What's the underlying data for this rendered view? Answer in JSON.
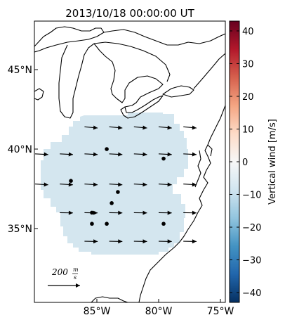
{
  "map": {
    "title": "2013/10/18 00:00:00 UT",
    "lon_ticks": [
      {
        "label": "85°W",
        "lon": -85
      },
      {
        "label": "80°W",
        "lon": -80
      },
      {
        "label": "75°W",
        "lon": -75
      }
    ],
    "lat_ticks": [
      {
        "label": "45°N",
        "lat": 45
      },
      {
        "label": "40°N",
        "lat": 40
      },
      {
        "label": "35°N",
        "lat": 35
      }
    ],
    "field_color": "#d4e6ef",
    "scale_label": "200",
    "scale_unit_num": "m",
    "scale_unit_den": "s"
  },
  "stations": [
    {
      "lat": 40.0,
      "lon": -84.2
    },
    {
      "lat": 39.4,
      "lon": -79.6
    },
    {
      "lat": 38.0,
      "lon": -87.1
    },
    {
      "lat": 37.3,
      "lon": -83.3
    },
    {
      "lat": 36.6,
      "lon": -83.8
    },
    {
      "lat": 36.0,
      "lon": -85.4
    },
    {
      "lat": 35.3,
      "lon": -85.4
    },
    {
      "lat": 35.3,
      "lon": -84.2
    },
    {
      "lat": 35.3,
      "lon": -79.6
    }
  ],
  "wind_rows": [
    {
      "lat": 41.4,
      "lons": [
        -86.0,
        -84.0,
        -82.0,
        -80.0,
        -78.0
      ],
      "u": 110,
      "v": -10
    },
    {
      "lat": 39.7,
      "lons": [
        -90.0,
        -88.0,
        -86.0,
        -84.0,
        -82.0,
        -80.0,
        -78.0
      ],
      "u": 110,
      "v": -6
    },
    {
      "lat": 37.8,
      "lons": [
        -90.0,
        -88.0,
        -86.0,
        -84.0,
        -82.0,
        -80.0,
        -78.0
      ],
      "u": 110,
      "v": -6
    },
    {
      "lat": 36.0,
      "lons": [
        -88.0,
        -86.0,
        -84.0,
        -82.0,
        -80.0,
        -78.0
      ],
      "u": 110,
      "v": -2
    },
    {
      "lat": 34.2,
      "lons": [
        -86.0,
        -84.0,
        -82.0,
        -80.0,
        -78.0
      ],
      "u": 110,
      "v": -2
    }
  ],
  "colorbar": {
    "label": "Vertical wind [m/s]",
    "min": -43,
    "max": 43,
    "ticks": [
      "40",
      "30",
      "20",
      "10",
      "0",
      "−10",
      "−20",
      "−30",
      "−40"
    ],
    "tick_values": [
      40,
      30,
      20,
      10,
      0,
      -10,
      -20,
      -30,
      -40
    ],
    "stops": [
      "#053061",
      "#2166ac",
      "#4393c3",
      "#92c5de",
      "#d1e5f0",
      "#f7f7f7",
      "#fddbc7",
      "#f4a582",
      "#d6604d",
      "#b2182b",
      "#67001f"
    ]
  }
}
